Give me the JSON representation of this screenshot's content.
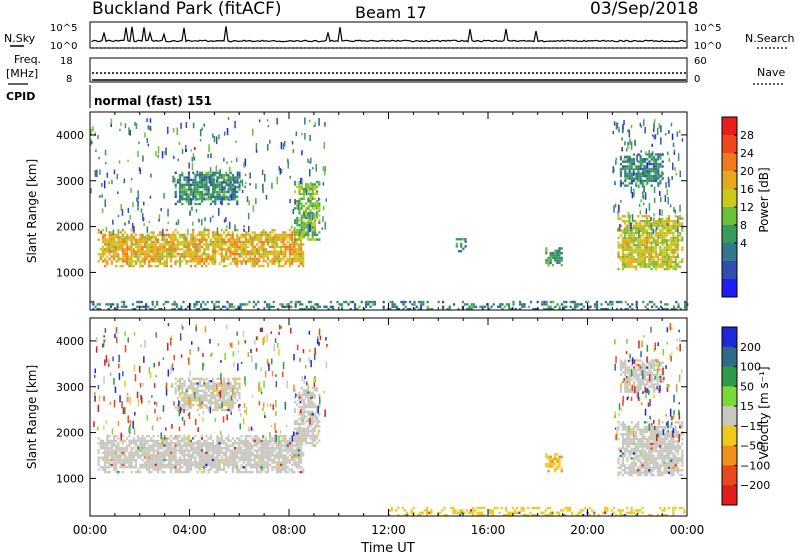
{
  "header": {
    "site": "Buckland Park (fitACF)",
    "beam": "Beam 17",
    "date": "03/Sep/2018"
  },
  "top_panels": {
    "nsky_label": "N.Sky",
    "nsearch_label": "N.Search",
    "freq_label_1": "Freq.",
    "freq_label_2": "[MHz]",
    "nave_label": "Nave",
    "cpid_label": "CPID",
    "cpid_text": "normal (fast) 151",
    "noise_ticks": [
      "10^5",
      "10^0"
    ],
    "freq_ticks": [
      "18",
      "8"
    ],
    "nave_ticks": [
      "60",
      "0"
    ]
  },
  "axes": {
    "xlabel": "Time UT",
    "ylabel": "Slant Range [km]",
    "x_ticks": [
      "00:00",
      "04:00",
      "08:00",
      "12:00",
      "16:00",
      "20:00",
      "00:00"
    ],
    "y_ticks": [
      "1000",
      "2000",
      "3000",
      "4000"
    ]
  },
  "colorbars": {
    "power": {
      "label": "Power [dB]",
      "ticks": [
        "4",
        "8",
        "12",
        "16",
        "20",
        "24",
        "28"
      ],
      "colors": [
        "#1e1ef0",
        "#2e4fb0",
        "#2e7a8a",
        "#3a9a5a",
        "#6cbf3a",
        "#c9c91e",
        "#e8a81e",
        "#f07a1e",
        "#f0461e",
        "#e81e1e"
      ]
    },
    "velocity": {
      "label": "Velocity [m s⁻¹]",
      "ticks": [
        "200",
        "100",
        "50",
        "15",
        "−15",
        "−50",
        "−100",
        "−200"
      ],
      "colors": [
        "#1e2ad8",
        "#2e6a8a",
        "#2e9a4a",
        "#7ad83a",
        "#c8c8c0",
        "#f0c81e",
        "#f0901e",
        "#e84a1e",
        "#e01e1e"
      ]
    }
  },
  "chart_data": [
    {
      "type": "heatmap",
      "title": "Power",
      "xlabel": "Time UT",
      "ylabel": "Slant Range [km]",
      "xlim": [
        0,
        24
      ],
      "ylim": [
        180,
        4500
      ],
      "value_range": [
        0,
        32
      ],
      "regions": [
        {
          "t0": 0.3,
          "t1": 8.6,
          "r0": 1150,
          "r1": 1950,
          "value": 20
        },
        {
          "t0": 3.4,
          "t1": 6.0,
          "r0": 2500,
          "r1": 3200,
          "value": 10
        },
        {
          "t0": 8.2,
          "t1": 9.2,
          "r0": 1700,
          "r1": 3000,
          "value": 14
        },
        {
          "t0": 14.7,
          "t1": 15.1,
          "r0": 1450,
          "r1": 1750,
          "value": 10
        },
        {
          "t0": 18.3,
          "t1": 19.0,
          "r0": 1150,
          "r1": 1550,
          "value": 11
        },
        {
          "t0": 21.2,
          "t1": 23.8,
          "r0": 1050,
          "r1": 2250,
          "value": 18
        },
        {
          "t0": 21.3,
          "t1": 23.0,
          "r0": 2900,
          "r1": 3600,
          "value": 9
        },
        {
          "t0": 0.0,
          "t1": 24.0,
          "r0": 180,
          "r1": 380,
          "value": 9
        }
      ]
    },
    {
      "type": "heatmap",
      "title": "Velocity",
      "xlabel": "Time UT",
      "ylabel": "Slant Range [km]",
      "xlim": [
        0,
        24
      ],
      "ylim": [
        180,
        4500
      ],
      "value_range": [
        -200,
        200
      ],
      "regions": [
        {
          "t0": 0.3,
          "t1": 8.6,
          "r0": 1150,
          "r1": 1950,
          "value": 0
        },
        {
          "t0": 3.4,
          "t1": 6.0,
          "r0": 2500,
          "r1": 3200,
          "value": -10
        },
        {
          "t0": 8.2,
          "t1": 9.2,
          "r0": 1700,
          "r1": 3000,
          "value": 5
        },
        {
          "t0": 18.3,
          "t1": 19.0,
          "r0": 1150,
          "r1": 1550,
          "value": -60
        },
        {
          "t0": 21.2,
          "t1": 23.8,
          "r0": 1050,
          "r1": 2250,
          "value": 0
        },
        {
          "t0": 21.3,
          "t1": 23.0,
          "r0": 2900,
          "r1": 3600,
          "value": -5
        },
        {
          "t0": 12.0,
          "t1": 24.0,
          "r0": 180,
          "r1": 380,
          "value": -40
        }
      ]
    }
  ]
}
